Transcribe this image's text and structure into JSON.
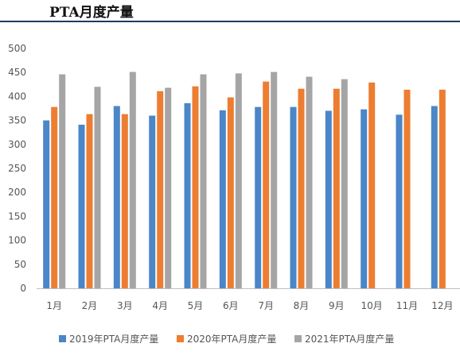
{
  "header": {
    "title": "PTA月度产量",
    "rule_color": "#1f3a5f"
  },
  "chart_data": {
    "type": "bar",
    "title": "",
    "xlabel": "",
    "ylabel": "",
    "ylim": [
      0,
      500
    ],
    "yticks": [
      0,
      50,
      100,
      150,
      200,
      250,
      300,
      350,
      400,
      450,
      500
    ],
    "grid": false,
    "legend_position": "bottom",
    "categories": [
      "1月",
      "2月",
      "3月",
      "4月",
      "5月",
      "6月",
      "7月",
      "8月",
      "9月",
      "10月",
      "11月",
      "12月"
    ],
    "series": [
      {
        "name": "2019年PTA月度产量",
        "color": "#4a86c8",
        "values": [
          350,
          341,
          380,
          360,
          386,
          371,
          378,
          378,
          370,
          373,
          362,
          380
        ]
      },
      {
        "name": "2020年PTA月度产量",
        "color": "#ed7d31",
        "values": [
          378,
          363,
          363,
          411,
          421,
          398,
          431,
          416,
          416,
          429,
          414,
          414
        ]
      },
      {
        "name": "2021年PTA月度产量",
        "color": "#a5a5a5",
        "values": [
          446,
          420,
          451,
          418,
          446,
          448,
          451,
          441,
          436,
          null,
          null,
          null
        ]
      }
    ]
  }
}
